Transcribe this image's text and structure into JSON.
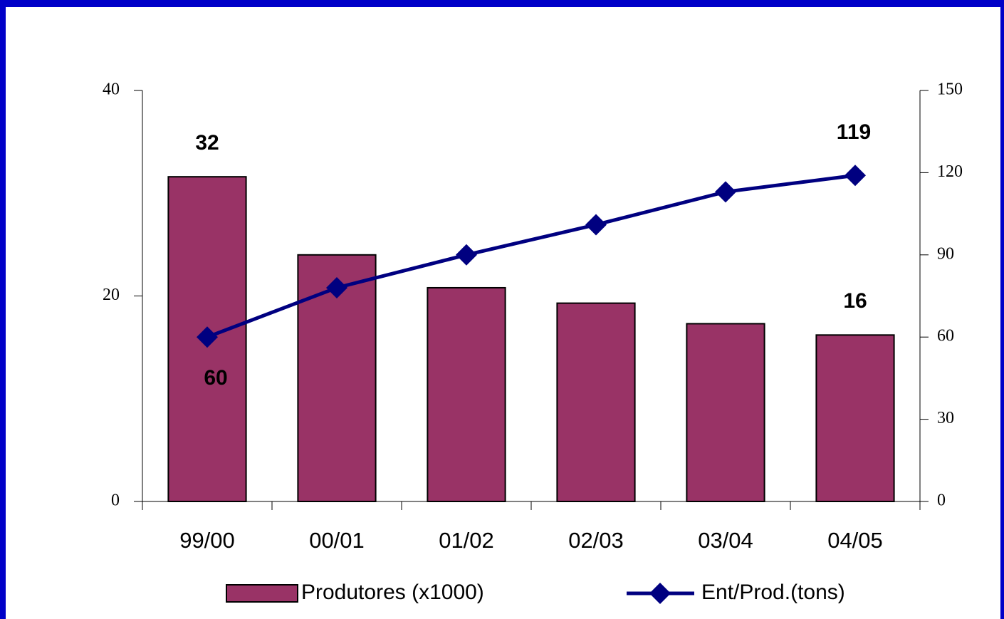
{
  "chart_data": {
    "type": "bar",
    "categories": [
      "99/00",
      "00/01",
      "01/02",
      "02/03",
      "03/04",
      "04/05"
    ],
    "series": [
      {
        "name": "Produtores (x1000)",
        "type": "bar",
        "color": "#993366",
        "values": [
          31.6,
          24,
          20.8,
          19.3,
          17.3,
          16.2
        ],
        "value_labels": [
          "32",
          null,
          null,
          null,
          null,
          "16"
        ]
      },
      {
        "name": "Ent/Prod.(tons)",
        "type": "line",
        "axis": "y2",
        "color": "#000080",
        "values": [
          60,
          78,
          90,
          101,
          113,
          119
        ],
        "value_labels": [
          "60",
          null,
          null,
          null,
          null,
          "119"
        ]
      }
    ],
    "ylim": [
      0,
      40
    ],
    "yticks": [
      0,
      20,
      40
    ],
    "y2lim": [
      0,
      150
    ],
    "y2ticks": [
      0,
      30,
      60,
      90,
      120,
      150
    ],
    "legend": "bottom"
  }
}
